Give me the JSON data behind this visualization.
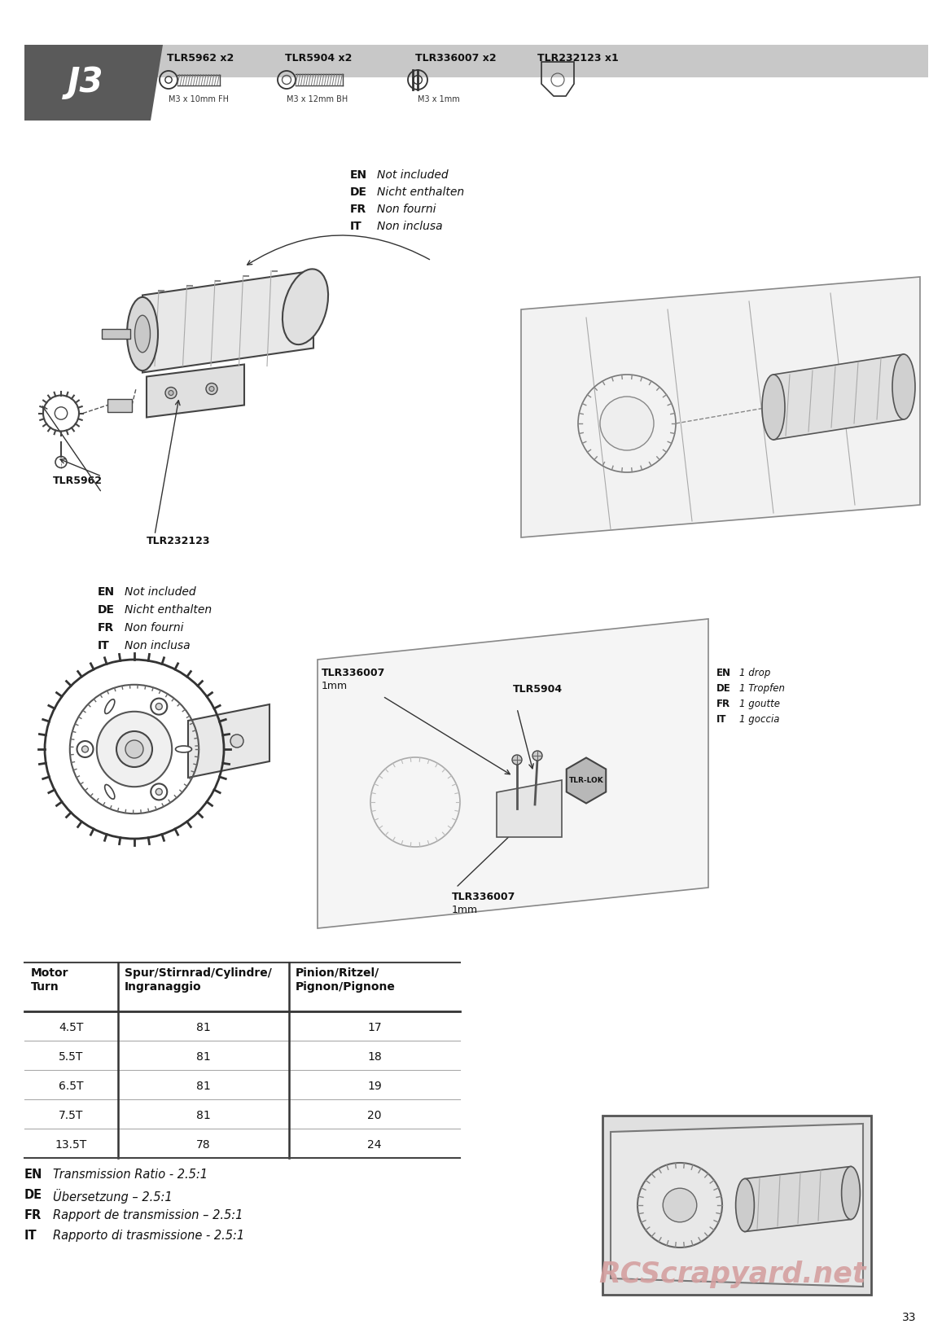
{
  "page_number": "33",
  "background_color": "#ffffff",
  "header_bg": "#cccccc",
  "step_label": "J3",
  "step_label_bg": "#5a5a5a",
  "step_label_color": "#ffffff",
  "parts": [
    {
      "code": "TLR5962 x2",
      "desc": "M3 x 10mm FH"
    },
    {
      "code": "TLR5904 x2",
      "desc": "M3 x 12mm BH"
    },
    {
      "code": "TLR336007 x2",
      "desc": "M3 x 1mm"
    },
    {
      "code": "TLR232123 x1",
      "desc": ""
    }
  ],
  "note_1": [
    {
      "lang": "EN",
      "text": "Not included"
    },
    {
      "lang": "DE",
      "text": "Nicht enthalten"
    },
    {
      "lang": "FR",
      "text": "Non fourni"
    },
    {
      "lang": "IT",
      "text": "Non inclusa"
    }
  ],
  "label_tlr5962": "TLR5962",
  "label_tlr232123": "TLR232123",
  "note_2": [
    {
      "lang": "EN",
      "text": "Not included"
    },
    {
      "lang": "DE",
      "text": "Nicht enthalten"
    },
    {
      "lang": "FR",
      "text": "Non fourni"
    },
    {
      "lang": "IT",
      "text": "Non inclusa"
    }
  ],
  "label_tlr336007_top": "TLR336007",
  "label_tlr336007_top2": "1mm",
  "label_tlr5904": "TLR5904",
  "label_tlr_lok": "TLR-LOK",
  "label_tlr336007_bot": "TLR336007",
  "label_tlr336007_bot2": "1mm",
  "note_3": [
    {
      "lang": "EN",
      "text": "1 drop"
    },
    {
      "lang": "DE",
      "text": "1 Tropfen"
    },
    {
      "lang": "FR",
      "text": "1 goutte"
    },
    {
      "lang": "IT",
      "text": "1 goccia"
    }
  ],
  "table_headers": [
    "Motor\nTurn",
    "Spur/Stirnrad/Cylindre/\nIngranaggio",
    "Pinion/Ritzel/\nPignon/Pignone"
  ],
  "table_rows": [
    [
      "4.5T",
      "81",
      "17"
    ],
    [
      "5.5T",
      "81",
      "18"
    ],
    [
      "6.5T",
      "81",
      "19"
    ],
    [
      "7.5T",
      "81",
      "20"
    ],
    [
      "13.5T",
      "78",
      "24"
    ]
  ],
  "transmission_notes": [
    {
      "lang": "EN",
      "text": "Transmission Ratio - 2.5:1"
    },
    {
      "lang": "DE",
      "text": "Übersetzung – 2.5:1"
    },
    {
      "lang": "FR",
      "text": "Rapport de transmission – 2.5:1"
    },
    {
      "lang": "IT",
      "text": "Rapporto di trasmissione - 2.5:1"
    }
  ],
  "watermark": "RCScrapyard.net",
  "watermark_color": "#d4a0a0"
}
